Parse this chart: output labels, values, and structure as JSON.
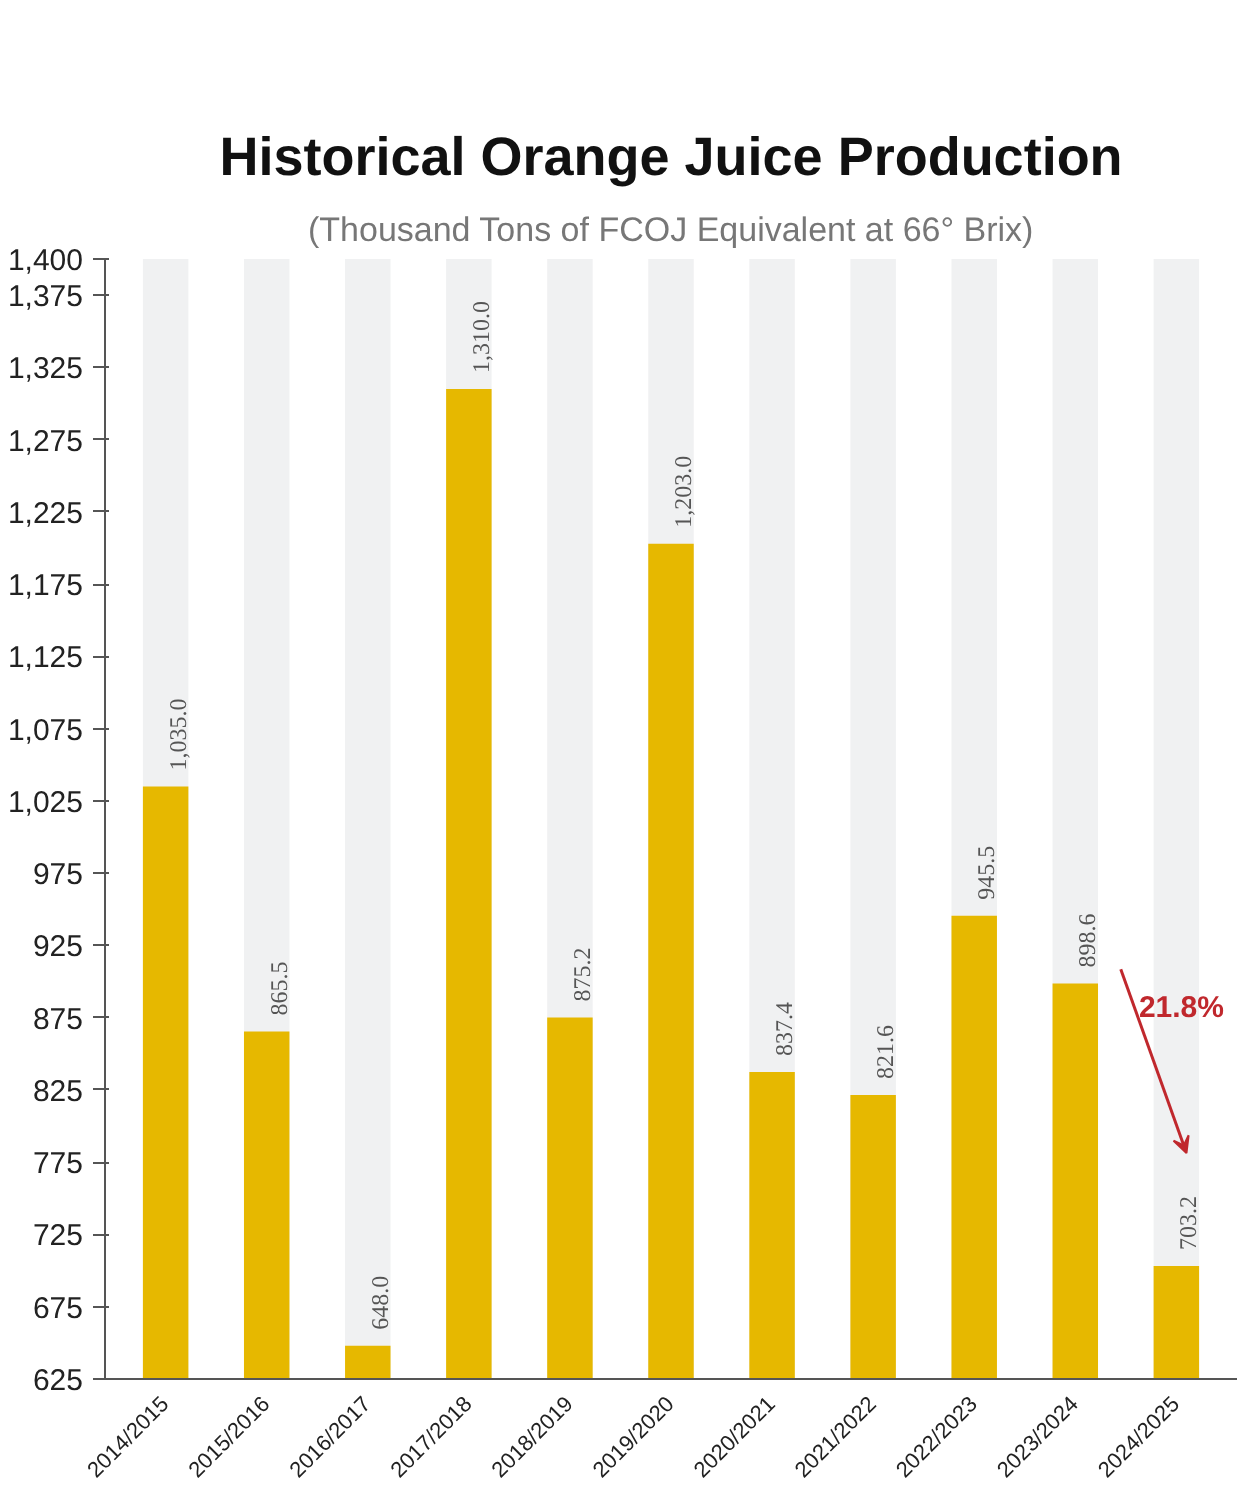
{
  "chart_data": {
    "type": "bar",
    "title": "Historical Orange Juice Production",
    "subtitle": "(Thousand Tons of FCOJ Equivalent at 66° Brix)",
    "categories": [
      "2014/2015",
      "2015/2016",
      "2016/2017",
      "2017/2018",
      "2018/2019",
      "2019/2020",
      "2020/2021",
      "2021/2022",
      "2022/2023",
      "2023/2024",
      "2024/2025"
    ],
    "series": [
      {
        "color": "#e6b800",
        "values": [
          1035.0,
          865.5,
          648.0,
          1310.0,
          875.2,
          1203.0,
          837.4,
          821.6,
          945.5,
          898.6,
          703.2
        ],
        "value_labels": [
          "1,035.0",
          "865.5",
          "648.0",
          "1,310.0",
          "875.2",
          "1,203.0",
          "837.4",
          "821.6",
          "945.5",
          "898.6",
          "703.2"
        ]
      }
    ],
    "ylim": [
      625,
      1400
    ],
    "yticks": [
      {
        "value": 625,
        "label": "625"
      },
      {
        "value": 675,
        "label": "675"
      },
      {
        "value": 725,
        "label": "725"
      },
      {
        "value": 775,
        "label": "775"
      },
      {
        "value": 825,
        "label": "825"
      },
      {
        "value": 875,
        "label": "875"
      },
      {
        "value": 925,
        "label": "925"
      },
      {
        "value": 975,
        "label": "975"
      },
      {
        "value": 1025,
        "label": "1,025"
      },
      {
        "value": 1075,
        "label": "1,075"
      },
      {
        "value": 1125,
        "label": "1,125"
      },
      {
        "value": 1175,
        "label": "1,175"
      },
      {
        "value": 1225,
        "label": "1,225"
      },
      {
        "value": 1275,
        "label": "1,275"
      },
      {
        "value": 1325,
        "label": "1,325"
      },
      {
        "value": 1375,
        "label": "1,375"
      },
      {
        "value": 1400,
        "label": "1,400"
      }
    ],
    "annotations": [
      "21.8%"
    ],
    "grid": false
  }
}
